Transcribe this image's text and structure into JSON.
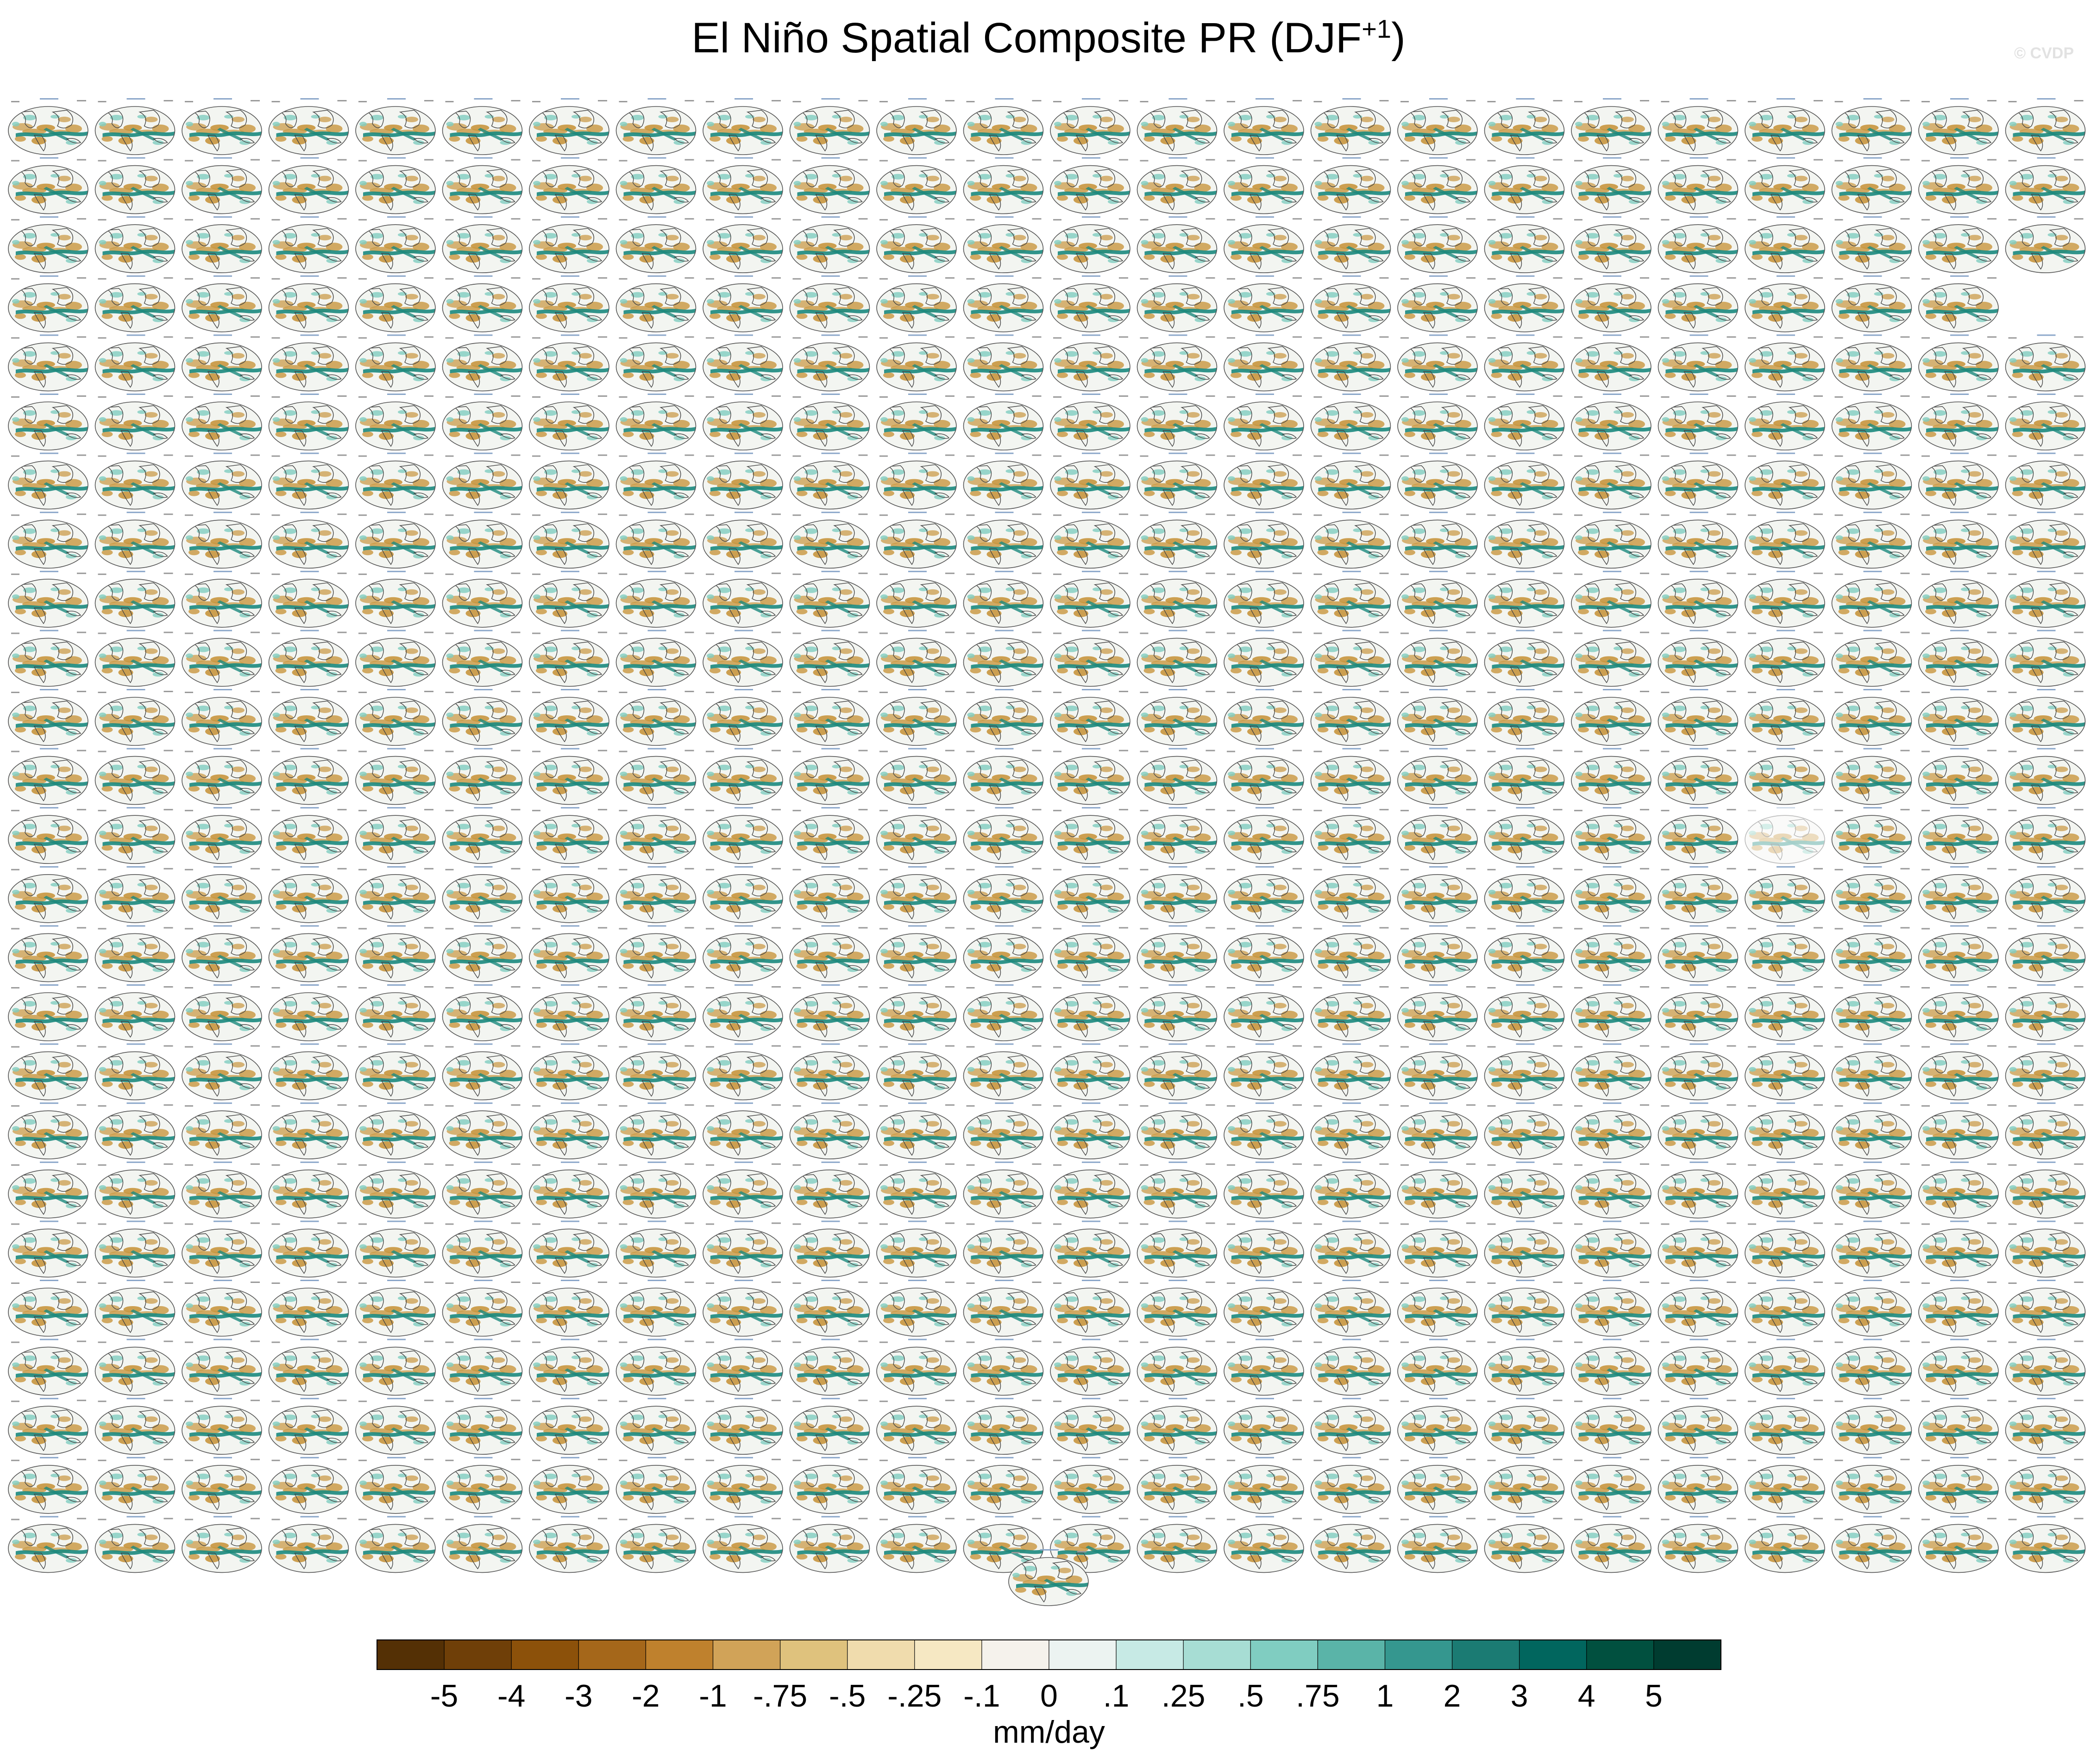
{
  "title": {
    "main": "El Niño Spatial Composite PR (DJF",
    "superscript": "+1",
    "close": ")"
  },
  "watermark": "© CVDP",
  "grid": {
    "columns": 24,
    "rows": 25,
    "missing_cells": [
      [
        3,
        23
      ]
    ],
    "faint_cells": [
      [
        12,
        20
      ]
    ],
    "extra_centered_panels": 1
  },
  "chart_data": {
    "type": "heatmap",
    "title": "El Niño Spatial Composite PR (DJF+1)",
    "colorbar": {
      "label": "mm/day",
      "tick_labels": [
        "-5",
        "-4",
        "-3",
        "-2",
        "-1",
        "-.75",
        "-.5",
        "-.25",
        "-.1",
        "0",
        ".1",
        ".25",
        ".5",
        ".75",
        "1",
        "2",
        "3",
        "4",
        "5"
      ],
      "levels": [
        -5,
        -4,
        -3,
        -2,
        -1,
        -0.75,
        -0.5,
        -0.25,
        -0.1,
        0,
        0.1,
        0.25,
        0.5,
        0.75,
        1,
        2,
        3,
        4,
        5
      ],
      "colors": [
        "#543005",
        "#6f3f08",
        "#8c510a",
        "#a5671a",
        "#bf812d",
        "#d1a358",
        "#dfc27d",
        "#f0dcad",
        "#f6e8c3",
        "#f5f2ec",
        "#ecf3f1",
        "#c7eae5",
        "#a7ddd4",
        "#80cdc1",
        "#5ab4a8",
        "#35978f",
        "#1b7b73",
        "#01665e",
        "#01503f",
        "#003c30"
      ]
    },
    "map_colors": {
      "ocean": "#f3f5f1",
      "dry": "#c8963e",
      "wet": "#1b8a7e",
      "outline": "#444444"
    }
  }
}
